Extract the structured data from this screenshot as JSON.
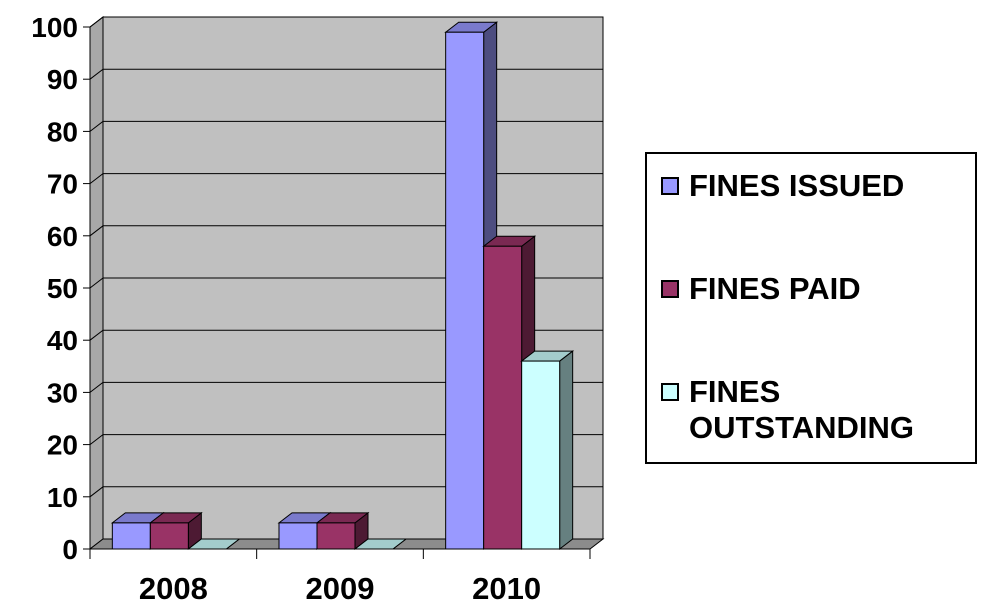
{
  "chart_data": {
    "type": "bar",
    "style": "3d-clustered-column",
    "categories": [
      "2008",
      "2009",
      "2010"
    ],
    "series": [
      {
        "name": "FINES ISSUED",
        "values": [
          5,
          5,
          99
        ],
        "color": "#9999ff"
      },
      {
        "name": "FINES PAID",
        "values": [
          5,
          5,
          58
        ],
        "color": "#993366"
      },
      {
        "name": "FINES OUTSTANDING",
        "values": [
          0,
          0,
          36
        ],
        "color": "#ccffff"
      }
    ],
    "y_ticks": [
      "0",
      "10",
      "20",
      "30",
      "40",
      "50",
      "60",
      "70",
      "80",
      "90",
      "100"
    ],
    "ylim": [
      0,
      100
    ],
    "grid": true,
    "plot_background": "#c0c0c0",
    "legend_position": "right"
  }
}
